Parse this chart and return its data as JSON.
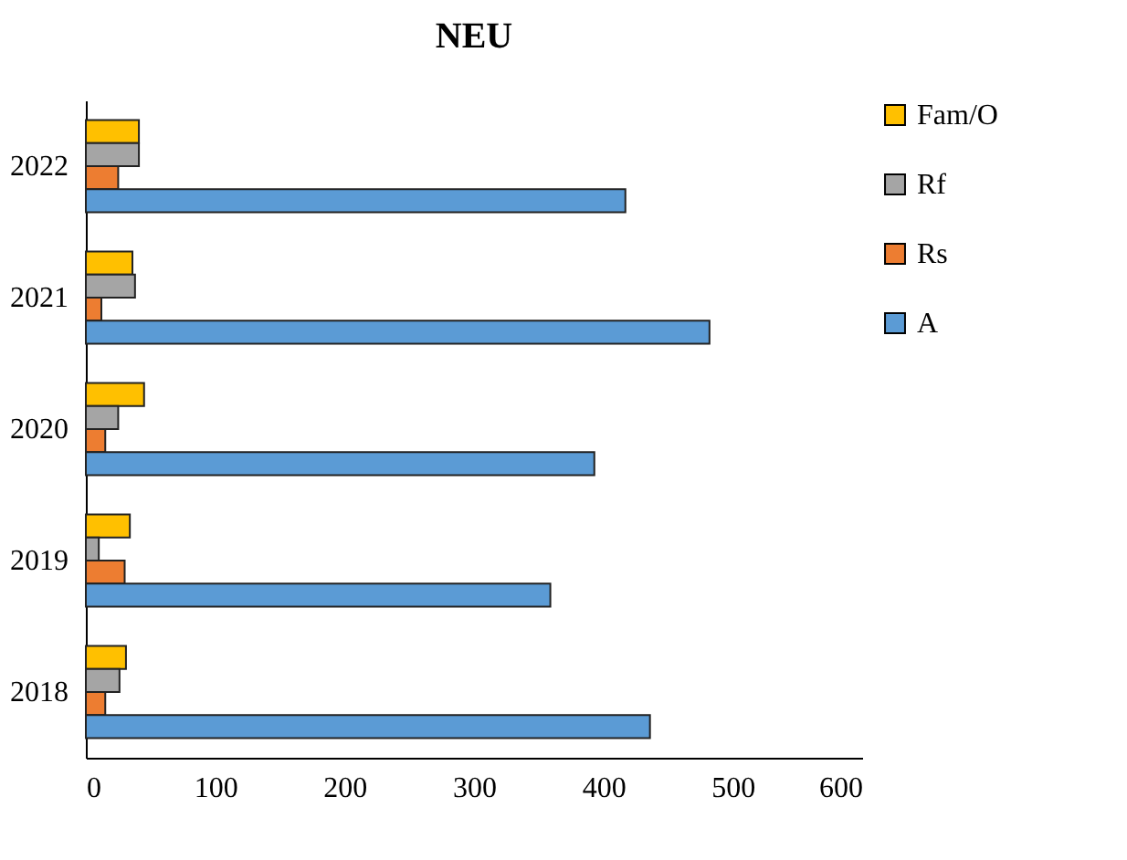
{
  "chart_data": {
    "type": "bar",
    "title": "NEU",
    "orientation": "horizontal",
    "categories": [
      "2022",
      "2021",
      "2020",
      "2019",
      "2018"
    ],
    "series": [
      {
        "name": "Fam/O",
        "color": "#ffc000",
        "values": [
          41,
          36,
          45,
          34,
          31
        ]
      },
      {
        "name": "Rf",
        "color": "#a5a5a5",
        "values": [
          41,
          38,
          25,
          10,
          26
        ]
      },
      {
        "name": "Rs",
        "color": "#ed7d31",
        "values": [
          25,
          12,
          15,
          30,
          15
        ]
      },
      {
        "name": "A",
        "color": "#5b9bd5",
        "values": [
          417,
          482,
          393,
          359,
          436
        ]
      }
    ],
    "xlim": [
      0,
      600
    ],
    "xticks": [
      0,
      100,
      200,
      300,
      400,
      500,
      600
    ],
    "grid": false,
    "legend": "right"
  }
}
